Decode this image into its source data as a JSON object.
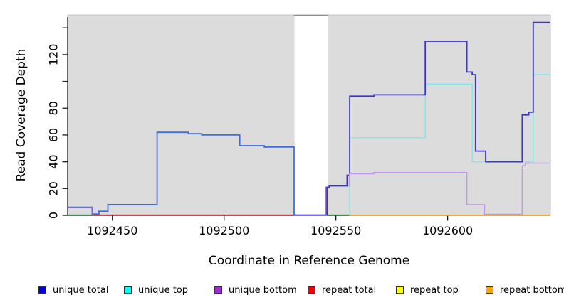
{
  "chart_data": {
    "type": "line",
    "step": true,
    "title": "",
    "xlabel": "Coordinate in Reference Genome",
    "ylabel": "Read Coverage Depth",
    "xlim": [
      1092430,
      1092646
    ],
    "ylim": [
      0,
      150
    ],
    "grid": false,
    "plot_bg": "#DCDCDC",
    "gap_region": {
      "x1": 1092531.5,
      "x2": 1092546.3,
      "fill": "#FFFFFF"
    },
    "xticks": [
      1092450,
      1092500,
      1092550,
      1092600
    ],
    "xtick_labels": [
      "1092450",
      "1092500",
      "1092550",
      "1092600"
    ],
    "yticks": [
      0,
      20,
      40,
      60,
      80,
      100,
      120,
      140
    ],
    "ytick_labels": [
      "0",
      "20",
      "40",
      "60",
      "80",
      "",
      "120",
      ""
    ],
    "legend_position": "bottom",
    "legend": [
      {
        "label": "unique total",
        "color": "#0000E6"
      },
      {
        "label": "unique top",
        "color": "#00FFFF"
      },
      {
        "label": "unique bottom",
        "color": "#9932CC"
      },
      {
        "label": "repeat total",
        "color": "#F00000"
      },
      {
        "label": "repeat top",
        "color": "#FFFF00"
      },
      {
        "label": "repeat bottom",
        "color": "#FFA500"
      }
    ],
    "series": [
      {
        "name": "repeat-total-baseline",
        "color": "#E0606C",
        "width": 1.3,
        "points": [
          [
            1092441,
            0.3
          ]
        ],
        "end": 1092531
      },
      {
        "name": "overlap-baseline-left",
        "color": "#86D392",
        "width": 1.3,
        "points": [
          [
            1092430,
            0.4
          ]
        ],
        "end": 1092441
      },
      {
        "name": "gap-bottom-line",
        "color": "#5742E3",
        "width": 1.6,
        "points": [
          [
            1092531.3,
            0.3
          ]
        ],
        "end": 1092546.3
      },
      {
        "name": "overlap-baseline-mid",
        "color": "#86D392",
        "width": 1.3,
        "points": [
          [
            1092546.3,
            0.4
          ]
        ],
        "end": 1092556
      },
      {
        "name": "repeat-bottom-baseline",
        "color": "#FF9E1B",
        "width": 1.6,
        "points": [
          [
            1092556,
            0
          ]
        ],
        "end": 1092646
      },
      {
        "name": "unique-total-left",
        "color": "#4169E1",
        "width": 1.8,
        "points": [
          [
            1092430,
            6
          ],
          [
            1092441,
            1
          ],
          [
            1092444,
            3
          ],
          [
            1092448,
            8
          ],
          [
            1092470,
            62
          ],
          [
            1092484,
            61
          ],
          [
            1092490,
            60
          ],
          [
            1092507,
            52
          ],
          [
            1092518,
            51
          ],
          [
            1092531.3,
            0.3
          ]
        ],
        "end": 1092531.4
      },
      {
        "name": "unique-bottom-left",
        "color": "#8A55E0",
        "width": 1.4,
        "points": [
          [
            1092430,
            6
          ],
          [
            1092441,
            0.4
          ]
        ],
        "end": 1092441.1
      },
      {
        "name": "unique-top-right",
        "color": "#6FEFEF",
        "width": 1.4,
        "points": [
          [
            1092556,
            0
          ],
          [
            1092556.2,
            58
          ],
          [
            1092590,
            98
          ],
          [
            1092611,
            40
          ],
          [
            1092638.3,
            105
          ]
        ],
        "end": 1092646
      },
      {
        "name": "unique-total-right",
        "color": "#3A35D1",
        "width": 1.8,
        "points": [
          [
            1092545.8,
            0.3
          ],
          [
            1092546,
            21
          ],
          [
            1092547,
            22
          ],
          [
            1092555,
            30
          ],
          [
            1092556.2,
            89
          ],
          [
            1092567,
            90
          ],
          [
            1092590,
            130
          ],
          [
            1092608.6,
            107
          ],
          [
            1092611,
            105
          ],
          [
            1092612.5,
            48
          ],
          [
            1092617,
            40
          ],
          [
            1092633.4,
            75
          ],
          [
            1092636.3,
            77
          ],
          [
            1092638.3,
            144
          ]
        ],
        "end": 1092646
      },
      {
        "name": "unique-bottom-rise",
        "color": "#8A4FD0",
        "width": 1.4,
        "points": [
          [
            1092545.5,
            0.3
          ],
          [
            1092545.6,
            21
          ]
        ],
        "end": 1092545.7
      },
      {
        "name": "unique-bottom-right",
        "color": "#C493EC",
        "width": 1.4,
        "points": [
          [
            1092555.5,
            22
          ],
          [
            1092556,
            31
          ],
          [
            1092567,
            32
          ],
          [
            1092608.6,
            8
          ],
          [
            1092616.5,
            0.8
          ],
          [
            1092633.4,
            37
          ],
          [
            1092634.7,
            39
          ]
        ],
        "end": 1092646
      }
    ]
  }
}
